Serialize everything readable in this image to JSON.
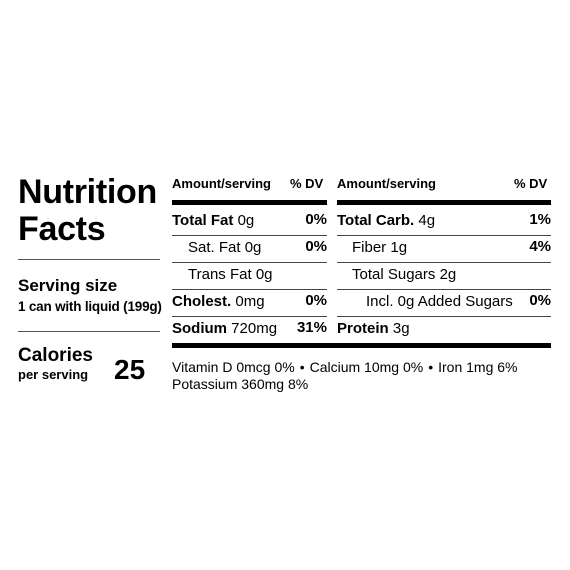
{
  "title": "Nutrition Facts",
  "serving": {
    "label": "Serving size",
    "value": "1 can with liquid (199g)"
  },
  "calories": {
    "label": "Calories",
    "sub": "per serving",
    "value": "25"
  },
  "headers": {
    "left_amount": "Amount/serving",
    "left_dv": "% DV",
    "right_amount": "Amount/serving",
    "right_dv": "% DV"
  },
  "left_rows": [
    {
      "name": "Total Fat",
      "amount": "0g",
      "dv": "0%"
    },
    {
      "name": "Sat. Fat",
      "amount": "0g",
      "dv": "0%"
    },
    {
      "name": "Trans Fat",
      "amount": "0g",
      "dv": ""
    },
    {
      "name": "Cholest.",
      "amount": "0mg",
      "dv": "0%"
    },
    {
      "name": "Sodium",
      "amount": "720mg",
      "dv": "31%"
    }
  ],
  "right_rows": [
    {
      "name": "Total Carb.",
      "amount": "4g",
      "dv": "1%"
    },
    {
      "name": "Fiber",
      "amount": "1g",
      "dv": "4%"
    },
    {
      "name": "Total Sugars",
      "amount": "2g",
      "dv": ""
    },
    {
      "name": "Incl. 0g Added Sugars",
      "amount": "",
      "dv": "0%"
    },
    {
      "name": "Protein",
      "amount": "3g",
      "dv": ""
    }
  ],
  "footer": {
    "vitamin_d": "Vitamin D 0mcg 0%",
    "calcium": "Calcium 10mg 0%",
    "iron": "Iron 1mg 6%",
    "potassium": "Potassium 360mg 8%",
    "separator": "•"
  }
}
